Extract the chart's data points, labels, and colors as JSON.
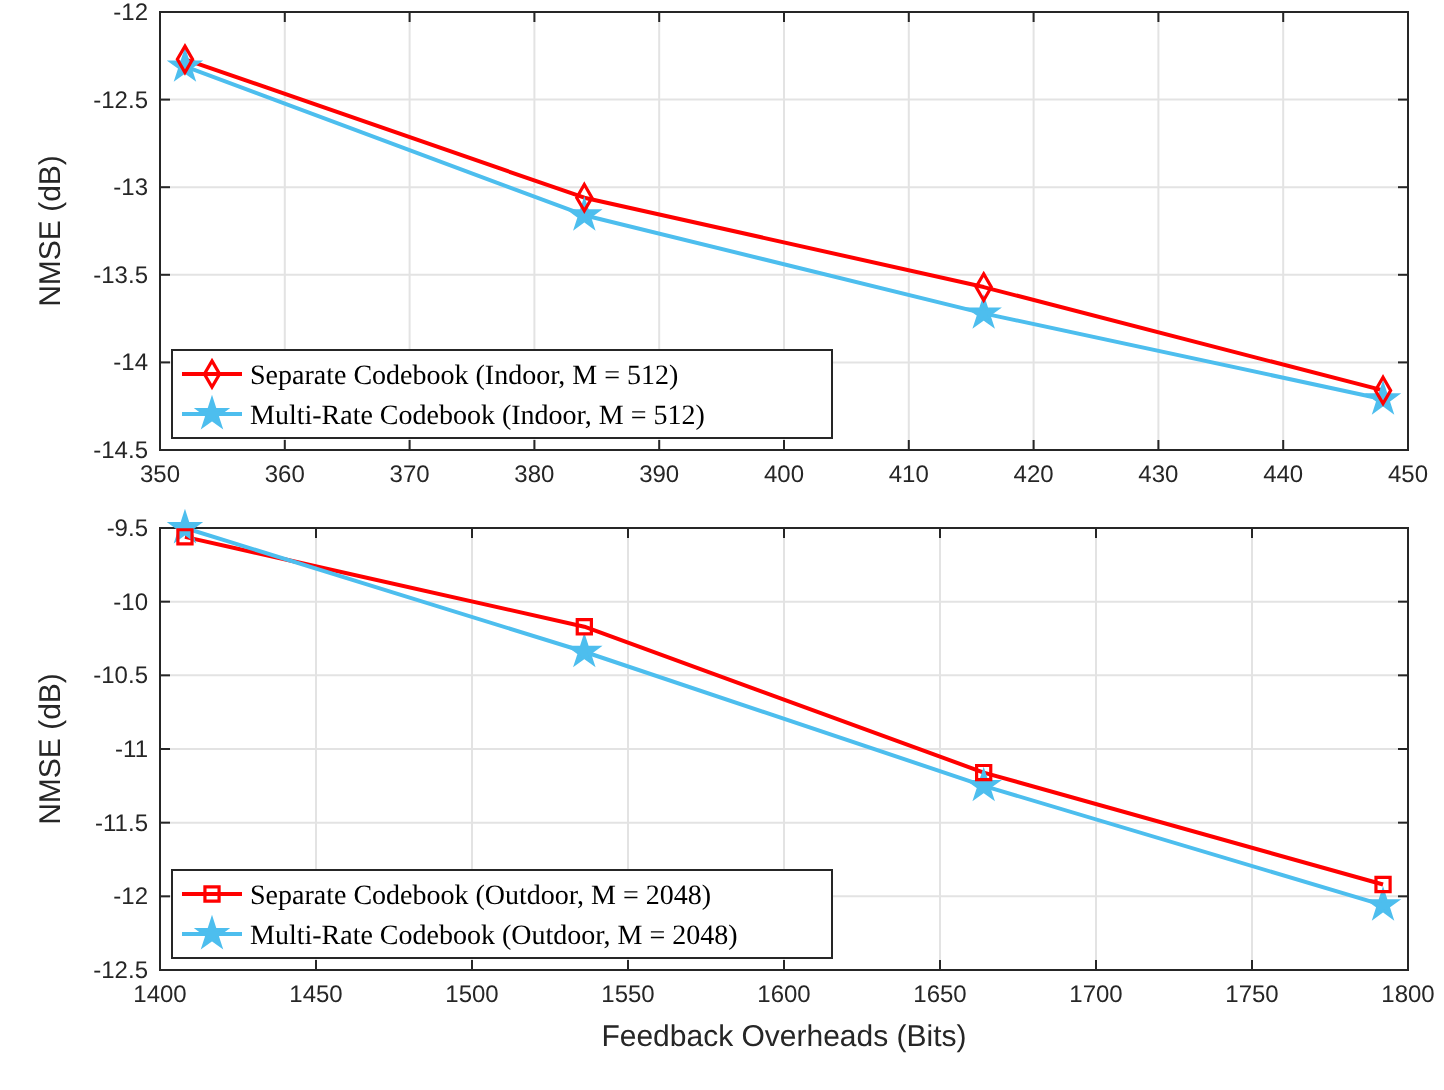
{
  "chart_data": [
    {
      "type": "line",
      "ylabel": "NMSE (dB)",
      "x": [
        352,
        384,
        416,
        448
      ],
      "xlim": [
        350,
        450
      ],
      "xticks": [
        350,
        360,
        370,
        380,
        390,
        400,
        410,
        420,
        430,
        440,
        450
      ],
      "ylim": [
        -14.5,
        -12
      ],
      "yticks": [
        -14.5,
        -14,
        -13.5,
        -13,
        -12.5,
        -12
      ],
      "grid": true,
      "legend": "bottom left",
      "series": [
        {
          "name": "Separate Codebook (Indoor, M = 512)",
          "color": "#ff0000",
          "marker": "diamond",
          "values": [
            -12.27,
            -13.06,
            -13.57,
            -14.16
          ]
        },
        {
          "name": "Multi-Rate Codebook (Indoor, M = 512)",
          "color": "#4dbeee",
          "marker": "star",
          "values": [
            -12.31,
            -13.16,
            -13.72,
            -14.21
          ]
        }
      ]
    },
    {
      "type": "line",
      "ylabel": "NMSE (dB)",
      "xlabel": "Feedback Overheads (Bits)",
      "x": [
        1408,
        1536,
        1664,
        1792
      ],
      "xlim": [
        1400,
        1800
      ],
      "xticks": [
        1400,
        1450,
        1500,
        1550,
        1600,
        1650,
        1700,
        1750,
        1800
      ],
      "ylim": [
        -12.5,
        -9.5
      ],
      "yticks": [
        -12.5,
        -12,
        -11.5,
        -11,
        -10.5,
        -10,
        -9.5
      ],
      "grid": true,
      "legend": "bottom left",
      "series": [
        {
          "name": "Separate Codebook (Outdoor, M = 2048)",
          "color": "#ff0000",
          "marker": "square",
          "values": [
            -9.56,
            -10.17,
            -11.16,
            -11.92
          ]
        },
        {
          "name": "Multi-Rate Codebook (Outdoor, M = 2048)",
          "color": "#4dbeee",
          "marker": "star",
          "values": [
            -9.5,
            -10.34,
            -11.25,
            -12.06
          ]
        }
      ]
    }
  ]
}
